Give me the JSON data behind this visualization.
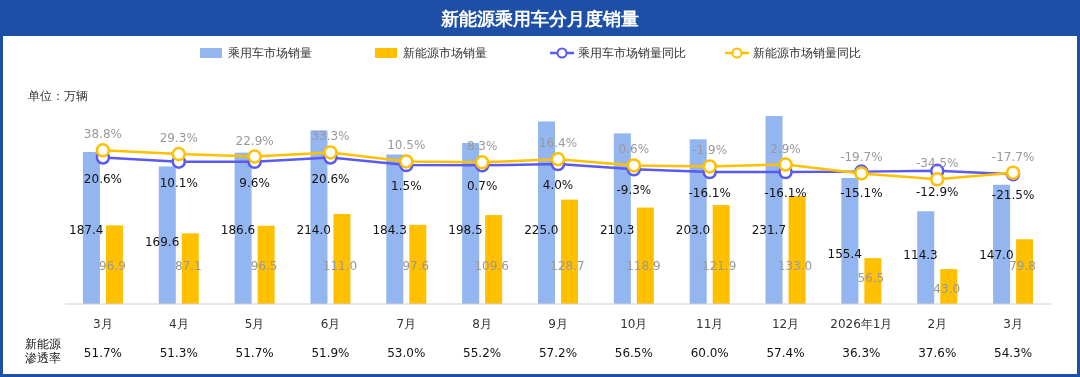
{
  "chart_data": {
    "type": "bar",
    "title": "新能源乘用车分月度销量",
    "ylabel": "单位：万辆",
    "categories": [
      "3月",
      "4月",
      "5月",
      "6月",
      "7月",
      "8月",
      "9月",
      "10月",
      "11月",
      "12月",
      "2026年1月",
      "2月",
      "3月"
    ],
    "series": [
      {
        "name": "乘用车市场销量",
        "color": "#93b5f0",
        "values": [
          187.4,
          169.6,
          186.6,
          214.0,
          184.3,
          198.5,
          225.0,
          210.3,
          203.0,
          231.7,
          155.4,
          114.3,
          147.0
        ],
        "value_labels": [
          "187.4",
          "169.6",
          "186.6",
          "214.0",
          "184.3",
          "198.5",
          "225.0",
          "210.3",
          "203.0",
          "231.7",
          "155.4",
          "114.3",
          "147.0"
        ]
      },
      {
        "name": "新能源市场销量",
        "color": "#ffc000",
        "values": [
          96.9,
          87.1,
          96.5,
          111.0,
          97.6,
          109.6,
          128.7,
          118.9,
          121.9,
          133.0,
          56.5,
          43.0,
          79.8
        ],
        "value_labels": [
          "96.9",
          "87.1",
          "96.5",
          "111.0",
          "97.6",
          "109.6",
          "128.7",
          "118.9",
          "121.9",
          "133.0",
          "56.5",
          "43.0",
          "79.8"
        ]
      },
      {
        "name": "乘用车市场销量同比",
        "type": "line",
        "axis": "y2",
        "color": "#5a5af2",
        "values": [
          20.6,
          10.1,
          9.6,
          20.6,
          1.5,
          0.7,
          4.0,
          -9.3,
          -16.1,
          -16.1,
          -15.1,
          -12.9,
          -21.5
        ],
        "value_labels": [
          "20.6%",
          "10.1%",
          "9.6%",
          "20.6%",
          "1.5%",
          "0.7%",
          "4.0%",
          "-9.3%",
          "-16.1%",
          "-16.1%",
          "-15.1%",
          "-12.9%",
          "-21.5%"
        ]
      },
      {
        "name": "新能源市场销量同比",
        "type": "line",
        "axis": "y2",
        "color": "#ffc000",
        "values": [
          38.8,
          29.3,
          22.9,
          33.3,
          10.5,
          8.3,
          16.4,
          0.6,
          -1.9,
          2.9,
          -19.7,
          -34.5,
          -17.7
        ],
        "value_labels": [
          "38.8%",
          "29.3%",
          "22.9%",
          "33.3%",
          "10.5%",
          "8.3%",
          "16.4%",
          "0.6%",
          "-1.9%",
          "2.9%",
          "-19.7%",
          "-34.5%",
          "-17.7%"
        ]
      }
    ],
    "tick_labels": "x",
    "legend": "top",
    "marker": "circle",
    "annotations": [
      "新能源渗透率",
      "51.7%",
      "51.3%",
      "51.7%",
      "51.9%",
      "53.0%",
      "55.2%",
      "57.2%",
      "56.5%",
      "60.0%",
      "57.4%",
      "36.3%",
      "37.6%",
      "54.3%"
    ]
  }
}
